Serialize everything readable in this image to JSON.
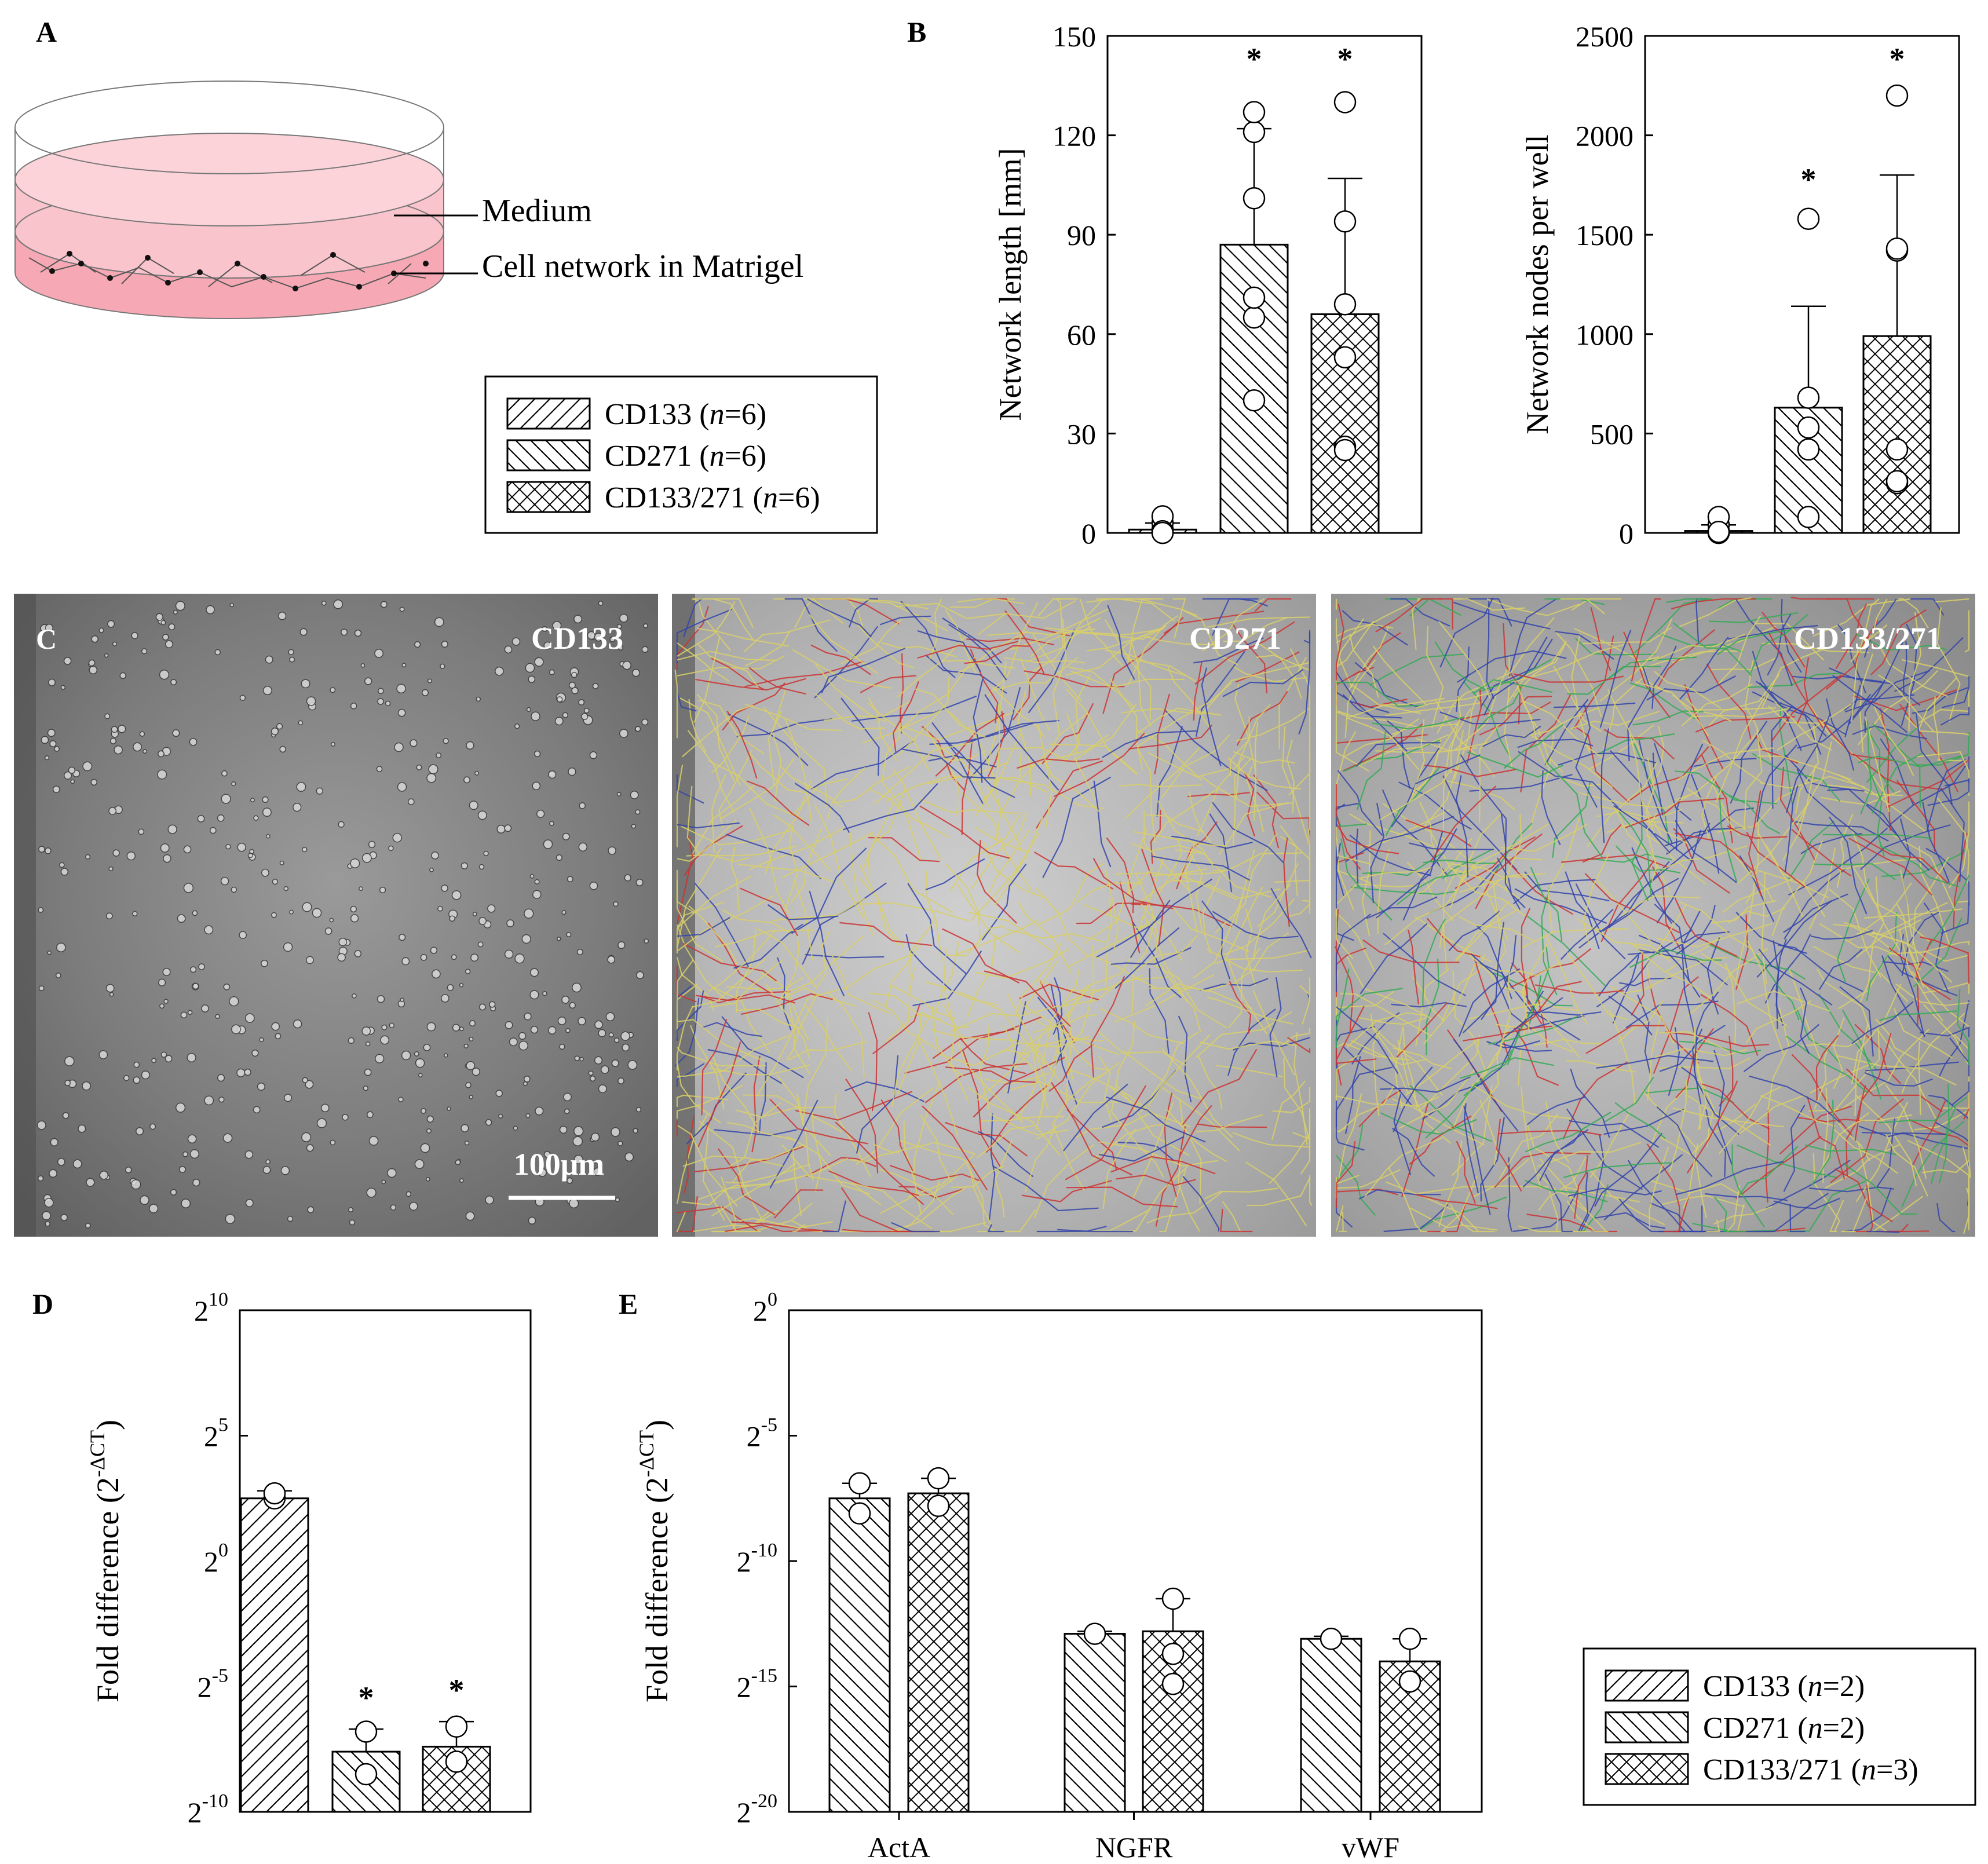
{
  "panels": {
    "A": {
      "letter": "A",
      "labels": {
        "medium": "Medium",
        "network": "Cell network in Matrigel"
      }
    },
    "B": {
      "letter": "B"
    },
    "C": {
      "letter": "C",
      "images": [
        "CD133",
        "CD271",
        "CD133/271"
      ],
      "scale_bar": "100μm"
    },
    "D": {
      "letter": "D"
    },
    "E": {
      "letter": "E"
    }
  },
  "legend_top": {
    "items": [
      {
        "name": "CD133",
        "n": "n",
        "eq": "=6)",
        "pattern": "fwd"
      },
      {
        "name": "CD271",
        "n": "n",
        "eq": "=6)",
        "pattern": "back"
      },
      {
        "name": "CD133/271",
        "n": "n",
        "eq": "=6)",
        "pattern": "cross"
      }
    ]
  },
  "legend_bottom": {
    "items": [
      {
        "name": "CD133",
        "n": "n",
        "eq": "=2)",
        "pattern": "fwd"
      },
      {
        "name": "CD271",
        "n": "n",
        "eq": "=2)",
        "pattern": "back"
      },
      {
        "name": "CD133/271",
        "n": "n",
        "eq": "=3)",
        "pattern": "cross"
      }
    ]
  },
  "chart_data": [
    {
      "id": "B1",
      "type": "bar",
      "title": "",
      "xlabel": "",
      "ylabel": "Network length [mm]",
      "ylim": [
        0,
        150
      ],
      "yticks": [
        0,
        30,
        60,
        90,
        120,
        150
      ],
      "categories": [
        "CD133",
        "CD271",
        "CD133/271"
      ],
      "values": [
        1,
        87,
        66
      ],
      "errors": [
        2,
        35,
        41
      ],
      "points": [
        [
          0,
          1,
          3,
          5,
          0.5,
          0
        ],
        [
          40,
          65,
          71,
          101,
          121,
          127
        ],
        [
          26,
          53,
          69,
          94,
          130,
          25
        ]
      ],
      "significant": [
        false,
        true,
        true
      ],
      "star": "*"
    },
    {
      "id": "B2",
      "type": "bar",
      "title": "",
      "xlabel": "",
      "ylabel": "Network nodes per well",
      "ylim": [
        0,
        2500
      ],
      "yticks": [
        0,
        500,
        1000,
        1500,
        2000,
        2500
      ],
      "categories": [
        "CD133",
        "CD271",
        "CD133/271"
      ],
      "values": [
        10,
        630,
        990
      ],
      "errors": [
        30,
        510,
        810
      ],
      "points": [
        [
          0,
          10,
          40,
          80,
          0,
          5
        ],
        [
          80,
          420,
          530,
          680,
          1580,
          420
        ],
        [
          250,
          420,
          1420,
          1430,
          2200,
          260
        ]
      ],
      "significant": [
        false,
        true,
        true
      ],
      "star": "*"
    },
    {
      "id": "D",
      "type": "bar",
      "title": "",
      "xlabel": "",
      "ylabel": "Fold difference (2",
      "ylabel_sup": "-ΔCT",
      "ylabel_end": ")",
      "y_scale": "log2 exponent",
      "ylim": [
        -10,
        10
      ],
      "ytick_base": "2",
      "yticks": [
        {
          "exp": 10,
          "label": "10"
        },
        {
          "exp": 5,
          "label": "5"
        },
        {
          "exp": 0,
          "label": "0"
        },
        {
          "exp": -5,
          "label": "-5"
        },
        {
          "exp": -10,
          "label": "-10"
        }
      ],
      "categories": [
        "CD133",
        "CD271",
        "CD133/271"
      ],
      "values": [
        2.5,
        -7.6,
        -7.4
      ],
      "errors": [
        0.3,
        0.9,
        1.0
      ],
      "points": [
        [
          2.5,
          2.7
        ],
        [
          -8.5,
          -6.8
        ],
        [
          -8.0,
          -6.6
        ]
      ],
      "significant": [
        false,
        true,
        true
      ],
      "star": "*"
    },
    {
      "id": "E",
      "type": "bar",
      "title": "",
      "xlabel": "",
      "ylabel": "Fold difference (2",
      "ylabel_sup": "-ΔCT",
      "ylabel_end": ")",
      "y_scale": "log2 exponent",
      "ylim": [
        -20,
        0
      ],
      "ytick_base": "2",
      "yticks": [
        {
          "exp": 0,
          "label": "0"
        },
        {
          "exp": -5,
          "label": "-5"
        },
        {
          "exp": -10,
          "label": "-10"
        },
        {
          "exp": -15,
          "label": "-15"
        },
        {
          "exp": -20,
          "label": "-20"
        }
      ],
      "groups": [
        "ActA",
        "NGFR",
        "vWF"
      ],
      "bars": [
        {
          "group": 0,
          "pattern": "back",
          "value": -7.5,
          "error": 0.6,
          "points": [
            -8.1,
            -6.9
          ]
        },
        {
          "group": 0,
          "pattern": "cross",
          "value": -7.3,
          "error": 0.6,
          "points": [
            -7.8,
            -6.7
          ]
        },
        {
          "group": 1,
          "pattern": "back",
          "value": -12.9,
          "error": 0.1,
          "points": [
            -12.9
          ]
        },
        {
          "group": 1,
          "pattern": "cross",
          "value": -12.8,
          "error": 1.3,
          "points": [
            -11.5,
            -13.7,
            -14.9
          ]
        },
        {
          "group": 2,
          "pattern": "back",
          "value": -13.1,
          "error": 0.1,
          "points": [
            -13.1
          ]
        },
        {
          "group": 2,
          "pattern": "cross",
          "value": -14.0,
          "error": 0.9,
          "points": [
            -13.1,
            -14.8
          ]
        }
      ],
      "significant": []
    }
  ]
}
